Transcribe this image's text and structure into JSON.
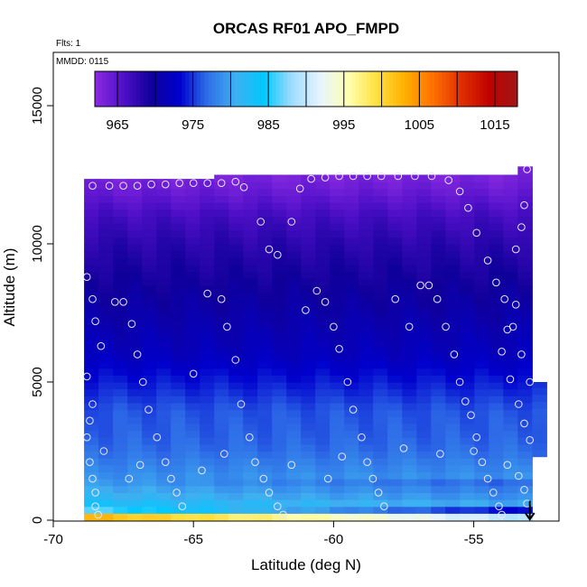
{
  "chart_data": {
    "type": "heatmap",
    "title": "ORCAS RF01 APO_FMPD",
    "annotations": [
      "Flts: 1",
      "MMDD: 0115"
    ],
    "xlabel": "Latitude (deg N)",
    "ylabel": "Altitude (m)",
    "xlim": [
      -70,
      -52.5
    ],
    "ylim": [
      0,
      17000
    ],
    "x_ticks": [
      -70,
      -65,
      -60,
      -55
    ],
    "x_tick_labels": [
      "-70",
      "-65",
      "-60",
      "-55"
    ],
    "y_ticks": [
      0,
      5000,
      10000,
      15000
    ],
    "y_tick_labels": [
      "0",
      "5000",
      "10000",
      "15000"
    ],
    "colorbar": {
      "min": 962,
      "max": 1018,
      "ticks": [
        965,
        975,
        985,
        995,
        1005,
        1015
      ],
      "tick_labels": [
        "965",
        "975",
        "985",
        "995",
        "1005",
        "1015"
      ],
      "colors": [
        "#8A2BE2",
        "#5010C8",
        "#10009A",
        "#0000CD",
        "#2F6FE8",
        "#3FAFF0",
        "#00C8FF",
        "#A0DCFF",
        "#E6F4FF",
        "#FFFFB0",
        "#FFE040",
        "#FFB000",
        "#FF7000",
        "#E03000",
        "#C00000",
        "#A01818"
      ],
      "position": "top-inside"
    },
    "field_profile": {
      "altitude": [
        0,
        200,
        400,
        700,
        1000,
        1500,
        2000,
        2500,
        3000,
        4000,
        5000,
        6000,
        8000,
        10000,
        11000,
        12000,
        12500
      ],
      "value": [
        1012,
        997,
        985,
        982,
        981,
        979,
        978,
        977,
        976.5,
        976,
        974,
        972,
        970,
        968,
        966.5,
        964,
        963
      ]
    },
    "flight_marker": {
      "type": "down-arrow",
      "latitude": -53.0
    },
    "sample_points": [
      [
        -68.6,
        12100
      ],
      [
        -68.0,
        12100
      ],
      [
        -67.5,
        12100
      ],
      [
        -67.0,
        12100
      ],
      [
        -66.5,
        12150
      ],
      [
        -66.0,
        12150
      ],
      [
        -65.5,
        12200
      ],
      [
        -65.0,
        12200
      ],
      [
        -64.5,
        12200
      ],
      [
        -64.0,
        12200
      ],
      [
        -63.5,
        12250
      ],
      [
        -63.2,
        12050
      ],
      [
        -62.6,
        10800
      ],
      [
        -62.3,
        9800
      ],
      [
        -62.0,
        9600
      ],
      [
        -61.5,
        10800
      ],
      [
        -61.2,
        12000
      ],
      [
        -60.8,
        12350
      ],
      [
        -60.3,
        12400
      ],
      [
        -59.8,
        12450
      ],
      [
        -59.3,
        12450
      ],
      [
        -58.8,
        12450
      ],
      [
        -58.3,
        12450
      ],
      [
        -57.7,
        12450
      ],
      [
        -57.1,
        12450
      ],
      [
        -56.5,
        12450
      ],
      [
        -55.9,
        12300
      ],
      [
        -55.5,
        11900
      ],
      [
        -55.2,
        11300
      ],
      [
        -54.9,
        10400
      ],
      [
        -54.5,
        9400
      ],
      [
        -54.2,
        8600
      ],
      [
        -53.9,
        8000
      ],
      [
        -53.6,
        7000
      ],
      [
        -53.3,
        6000
      ],
      [
        -53.0,
        5000
      ],
      [
        -68.8,
        8800
      ],
      [
        -68.6,
        8000
      ],
      [
        -68.5,
        7200
      ],
      [
        -68.3,
        6300
      ],
      [
        -68.8,
        5200
      ],
      [
        -68.6,
        4200
      ],
      [
        -68.7,
        3600
      ],
      [
        -68.8,
        3000
      ],
      [
        -68.7,
        2100
      ],
      [
        -68.6,
        1500
      ],
      [
        -68.5,
        1000
      ],
      [
        -68.5,
        500
      ],
      [
        -68.4,
        200
      ],
      [
        -67.8,
        7900
      ],
      [
        -67.5,
        7900
      ],
      [
        -67.2,
        7100
      ],
      [
        -67.0,
        6000
      ],
      [
        -66.8,
        5000
      ],
      [
        -66.6,
        4000
      ],
      [
        -66.3,
        3000
      ],
      [
        -66.0,
        2100
      ],
      [
        -65.8,
        1500
      ],
      [
        -65.6,
        1000
      ],
      [
        -65.4,
        500
      ],
      [
        -65.0,
        5300
      ],
      [
        -64.5,
        8200
      ],
      [
        -64.0,
        8000
      ],
      [
        -63.8,
        7000
      ],
      [
        -63.5,
        5800
      ],
      [
        -63.3,
        4200
      ],
      [
        -63.0,
        3000
      ],
      [
        -62.8,
        2100
      ],
      [
        -62.5,
        1500
      ],
      [
        -62.3,
        1000
      ],
      [
        -62.0,
        500
      ],
      [
        -61.8,
        200
      ],
      [
        -61.0,
        7600
      ],
      [
        -60.6,
        8300
      ],
      [
        -60.3,
        7900
      ],
      [
        -60.0,
        7000
      ],
      [
        -59.8,
        6200
      ],
      [
        -59.5,
        5000
      ],
      [
        -59.3,
        4000
      ],
      [
        -59.0,
        3000
      ],
      [
        -58.8,
        2100
      ],
      [
        -58.6,
        1500
      ],
      [
        -58.4,
        1000
      ],
      [
        -58.2,
        500
      ],
      [
        -57.8,
        8000
      ],
      [
        -57.3,
        7000
      ],
      [
        -56.9,
        8500
      ],
      [
        -56.6,
        8500
      ],
      [
        -56.3,
        8000
      ],
      [
        -56.0,
        7000
      ],
      [
        -55.7,
        6000
      ],
      [
        -55.5,
        5000
      ],
      [
        -55.3,
        4300
      ],
      [
        -55.1,
        3800
      ],
      [
        -54.9,
        3000
      ],
      [
        -54.7,
        2100
      ],
      [
        -54.5,
        1500
      ],
      [
        -54.3,
        1000
      ],
      [
        -54.1,
        500
      ],
      [
        -54.0,
        200
      ],
      [
        -68.2,
        2500
      ],
      [
        -67.3,
        1500
      ],
      [
        -66.9,
        2000
      ],
      [
        -64.7,
        1800
      ],
      [
        -63.9,
        2400
      ],
      [
        -61.5,
        2000
      ],
      [
        -60.2,
        1500
      ],
      [
        -59.7,
        2300
      ],
      [
        -57.5,
        2600
      ],
      [
        -56.2,
        2400
      ],
      [
        -55.0,
        2500
      ],
      [
        -53.8,
        2000
      ],
      [
        -53.4,
        1600
      ],
      [
        -53.2,
        1100
      ],
      [
        -53.1,
        600
      ],
      [
        -53.5,
        7800
      ],
      [
        -53.8,
        6900
      ],
      [
        -54.0,
        6100
      ],
      [
        -53.7,
        5100
      ],
      [
        -53.4,
        4200
      ],
      [
        -53.2,
        3500
      ],
      [
        -53.0,
        2900
      ],
      [
        -53.1,
        12700
      ],
      [
        -53.2,
        11400
      ],
      [
        -53.3,
        10600
      ],
      [
        -53.5,
        9800
      ]
    ]
  }
}
